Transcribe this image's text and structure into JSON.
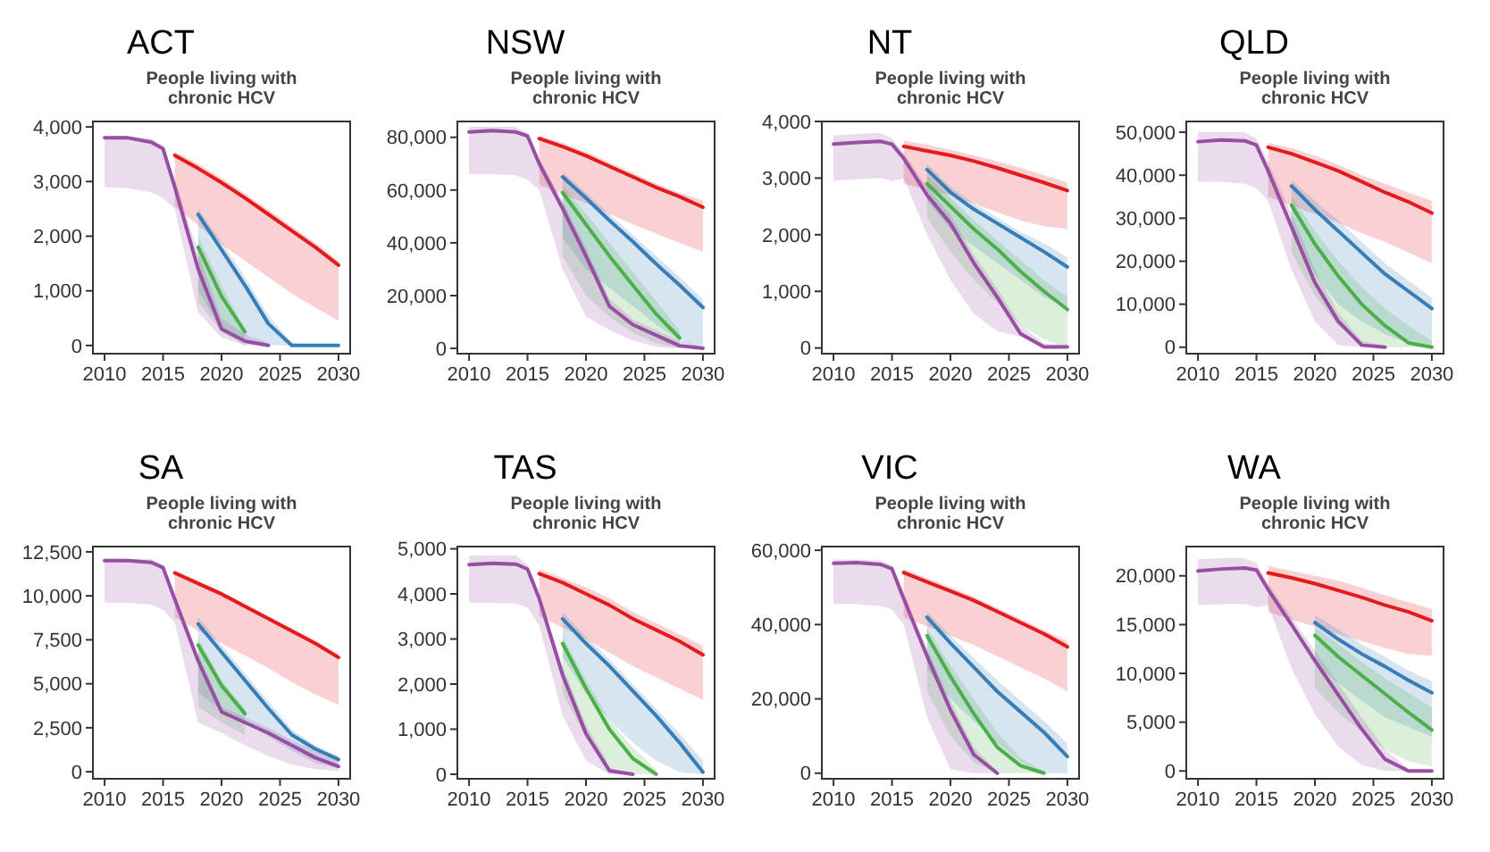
{
  "chart_data": [
    {
      "type": "line",
      "title": "ACT",
      "subtitle": "People living with chronic HCV",
      "x": [
        2010,
        2012,
        2014,
        2015,
        2016,
        2018,
        2020,
        2022,
        2024,
        2026,
        2028,
        2030
      ],
      "xlim": [
        2009,
        2031
      ],
      "xticks": [
        2010,
        2015,
        2020,
        2025,
        2030
      ],
      "ylim": [
        -150,
        4100
      ],
      "yticks": [
        {
          "value": 0,
          "label": "0"
        },
        {
          "value": 1000,
          "label": "1,000"
        },
        {
          "value": 2000,
          "label": "2,000"
        },
        {
          "value": 3000,
          "label": "3,000"
        },
        {
          "value": 4000,
          "label": "4,000"
        }
      ],
      "line_style": "solid",
      "series": [
        {
          "color": "#e41a1c",
          "values": [
            null,
            null,
            null,
            null,
            3480,
            3240,
            2980,
            2700,
            2400,
            2100,
            1800,
            1470
          ],
          "lower": [
            null,
            null,
            null,
            null,
            2550,
            2200,
            1850,
            1550,
            1250,
            950,
            700,
            450
          ],
          "upper": [
            null,
            null,
            null,
            null,
            3550,
            3320,
            3060,
            2780,
            2480,
            2180,
            1880,
            1550
          ]
        },
        {
          "color": "#377eb8",
          "values": [
            null,
            null,
            null,
            null,
            null,
            2400,
            1750,
            1100,
            400,
            0,
            0,
            0
          ],
          "lower": [
            null,
            null,
            null,
            null,
            null,
            1000,
            300,
            100,
            0,
            0,
            0,
            0
          ],
          "upper": [
            null,
            null,
            null,
            null,
            null,
            2500,
            1900,
            1250,
            550,
            50,
            0,
            0
          ]
        },
        {
          "color": "#4daf4a",
          "values": [
            null,
            null,
            null,
            null,
            null,
            1800,
            900,
            250,
            null,
            null,
            null,
            null
          ],
          "lower": [
            null,
            null,
            null,
            null,
            null,
            800,
            250,
            0,
            null,
            null,
            null,
            null
          ],
          "upper": [
            null,
            null,
            null,
            null,
            null,
            2000,
            1100,
            300,
            null,
            null,
            null,
            null
          ]
        },
        {
          "color": "#984ea3",
          "values": [
            3800,
            3800,
            3720,
            3600,
            2900,
            1400,
            300,
            80,
            0,
            null,
            null,
            null
          ],
          "lower": [
            2900,
            2880,
            2800,
            2700,
            2500,
            600,
            150,
            0,
            0,
            null,
            null,
            null
          ],
          "upper": [
            3830,
            3830,
            3780,
            3650,
            3050,
            1700,
            500,
            200,
            50,
            null,
            null,
            null
          ]
        }
      ]
    },
    {
      "type": "line",
      "title": "NSW",
      "subtitle": "People living with chronic HCV",
      "x": [
        2010,
        2012,
        2014,
        2015,
        2016,
        2018,
        2020,
        2022,
        2024,
        2026,
        2028,
        2030
      ],
      "xlim": [
        2009,
        2031
      ],
      "xticks": [
        2010,
        2015,
        2020,
        2025,
        2030
      ],
      "ylim": [
        -2000,
        86000
      ],
      "yticks": [
        {
          "value": 0,
          "label": "0"
        },
        {
          "value": 20000,
          "label": "20,000"
        },
        {
          "value": 40000,
          "label": "40,000"
        },
        {
          "value": 60000,
          "label": "60,000"
        },
        {
          "value": 80000,
          "label": "80,000"
        }
      ],
      "line_style": "solid",
      "series": [
        {
          "color": "#e41a1c",
          "values": [
            null,
            null,
            null,
            null,
            79500,
            76500,
            73000,
            69000,
            65000,
            61000,
            57500,
            53500
          ],
          "lower": [
            null,
            null,
            null,
            null,
            62000,
            58500,
            55000,
            51000,
            47000,
            43500,
            40000,
            36500
          ],
          "upper": [
            null,
            null,
            null,
            null,
            80500,
            78000,
            74500,
            70500,
            66500,
            62500,
            59000,
            56000
          ]
        },
        {
          "color": "#377eb8",
          "values": [
            null,
            null,
            null,
            null,
            null,
            65000,
            57000,
            48500,
            40500,
            32000,
            24000,
            15500
          ],
          "lower": [
            null,
            null,
            null,
            null,
            null,
            42000,
            30000,
            23000,
            16000,
            9000,
            3000,
            0
          ],
          "upper": [
            null,
            null,
            null,
            null,
            null,
            67000,
            59000,
            51000,
            43000,
            35000,
            27000,
            18500
          ]
        },
        {
          "color": "#4daf4a",
          "values": [
            null,
            null,
            null,
            null,
            null,
            59000,
            47000,
            35000,
            24000,
            13000,
            4000,
            null
          ],
          "lower": [
            null,
            null,
            null,
            null,
            null,
            35000,
            20000,
            12000,
            6000,
            2000,
            0,
            null
          ],
          "upper": [
            null,
            null,
            null,
            null,
            null,
            62000,
            51000,
            40000,
            29000,
            18000,
            7000,
            null
          ]
        },
        {
          "color": "#984ea3",
          "values": [
            82000,
            82500,
            82000,
            80500,
            70000,
            53000,
            35000,
            16000,
            9000,
            5000,
            1000,
            0
          ],
          "lower": [
            66000,
            66000,
            65500,
            64000,
            60000,
            30000,
            12000,
            7000,
            3000,
            500,
            0,
            0
          ],
          "upper": [
            84000,
            84000,
            84000,
            81500,
            72000,
            56000,
            38000,
            19000,
            11000,
            7000,
            3000,
            500
          ]
        }
      ]
    },
    {
      "type": "line",
      "title": "NT",
      "subtitle": "People living with chronic HCV",
      "x": [
        2010,
        2012,
        2014,
        2015,
        2016,
        2018,
        2020,
        2022,
        2024,
        2026,
        2028,
        2030
      ],
      "xlim": [
        2009,
        2031
      ],
      "xticks": [
        2010,
        2015,
        2020,
        2025,
        2030
      ],
      "ylim": [
        -100,
        4000
      ],
      "yticks": [
        {
          "value": 0,
          "label": "0"
        },
        {
          "value": 1000,
          "label": "1,000"
        },
        {
          "value": 2000,
          "label": "2,000"
        },
        {
          "value": 3000,
          "label": "3,000"
        },
        {
          "value": 4000,
          "label": "4,000"
        }
      ],
      "line_style": "solid",
      "series": [
        {
          "color": "#e41a1c",
          "values": [
            null,
            null,
            null,
            null,
            3560,
            3480,
            3400,
            3300,
            3180,
            3050,
            2920,
            2780
          ],
          "lower": [
            null,
            null,
            null,
            null,
            2900,
            2800,
            2700,
            2550,
            2400,
            2250,
            2150,
            2100
          ],
          "upper": [
            null,
            null,
            null,
            null,
            3660,
            3590,
            3500,
            3400,
            3300,
            3180,
            3050,
            2920
          ]
        },
        {
          "color": "#377eb8",
          "values": [
            null,
            null,
            null,
            null,
            null,
            3150,
            2750,
            2450,
            2200,
            1950,
            1700,
            1430
          ],
          "lower": [
            null,
            null,
            null,
            null,
            null,
            2600,
            2100,
            1800,
            1500,
            1200,
            900,
            700
          ],
          "upper": [
            null,
            null,
            null,
            null,
            null,
            3250,
            2850,
            2550,
            2300,
            2050,
            1850,
            1600
          ]
        },
        {
          "color": "#4daf4a",
          "values": [
            null,
            null,
            null,
            null,
            null,
            2900,
            2500,
            2100,
            1750,
            1350,
            1000,
            680
          ],
          "lower": [
            null,
            null,
            null,
            null,
            null,
            2300,
            1700,
            1200,
            800,
            400,
            150,
            0
          ],
          "upper": [
            null,
            null,
            null,
            null,
            null,
            3050,
            2650,
            2250,
            1900,
            1550,
            1200,
            900
          ]
        },
        {
          "color": "#984ea3",
          "values": [
            3600,
            3630,
            3650,
            3600,
            3350,
            2700,
            2200,
            1500,
            900,
            250,
            20,
            20
          ],
          "lower": [
            2950,
            2980,
            3000,
            2950,
            3000,
            2000,
            1200,
            600,
            300,
            200,
            0,
            0
          ],
          "upper": [
            3750,
            3780,
            3800,
            3700,
            3450,
            2850,
            2350,
            1650,
            1050,
            400,
            80,
            50
          ]
        }
      ]
    },
    {
      "type": "line",
      "title": "QLD",
      "subtitle": "People living with chronic HCV",
      "x": [
        2010,
        2012,
        2014,
        2015,
        2016,
        2018,
        2020,
        2022,
        2024,
        2026,
        2028,
        2030
      ],
      "xlim": [
        2009,
        2031
      ],
      "xticks": [
        2010,
        2015,
        2020,
        2025,
        2030
      ],
      "ylim": [
        -1500,
        52500
      ],
      "yticks": [
        {
          "value": 0,
          "label": "0"
        },
        {
          "value": 10000,
          "label": "10,000"
        },
        {
          "value": 20000,
          "label": "20,000"
        },
        {
          "value": 30000,
          "label": "30,000"
        },
        {
          "value": 40000,
          "label": "40,000"
        },
        {
          "value": 50000,
          "label": "50,000"
        }
      ],
      "line_style": "solid",
      "series": [
        {
          "color": "#e41a1c",
          "values": [
            null,
            null,
            null,
            null,
            46500,
            45000,
            43000,
            41000,
            38500,
            36000,
            33800,
            31200
          ],
          "lower": [
            null,
            null,
            null,
            null,
            35000,
            33000,
            31000,
            29000,
            26500,
            24500,
            22000,
            19500
          ],
          "upper": [
            null,
            null,
            null,
            null,
            47500,
            46300,
            44500,
            42500,
            40000,
            38000,
            36000,
            34000
          ]
        },
        {
          "color": "#377eb8",
          "values": [
            null,
            null,
            null,
            null,
            null,
            37500,
            32000,
            27000,
            22000,
            17000,
            13000,
            9000
          ],
          "lower": [
            null,
            null,
            null,
            null,
            null,
            27000,
            17000,
            10000,
            6000,
            3000,
            1000,
            0
          ],
          "upper": [
            null,
            null,
            null,
            null,
            null,
            39000,
            34000,
            29500,
            24500,
            19500,
            15500,
            11500
          ]
        },
        {
          "color": "#4daf4a",
          "values": [
            null,
            null,
            null,
            null,
            null,
            33000,
            24000,
            16500,
            10000,
            5000,
            1000,
            0
          ],
          "lower": [
            null,
            null,
            null,
            null,
            null,
            22000,
            12000,
            5000,
            1000,
            0,
            0,
            0
          ],
          "upper": [
            null,
            null,
            null,
            null,
            null,
            35000,
            27000,
            20000,
            14000,
            9000,
            5000,
            1500
          ]
        },
        {
          "color": "#984ea3",
          "values": [
            47800,
            48200,
            48000,
            47000,
            41000,
            28000,
            15000,
            6000,
            500,
            0,
            null,
            null
          ],
          "lower": [
            38500,
            38500,
            38000,
            37000,
            34000,
            18000,
            6000,
            500,
            0,
            0,
            null,
            null
          ],
          "upper": [
            50000,
            50000,
            50000,
            48500,
            43000,
            31000,
            18000,
            8000,
            1500,
            300,
            null,
            null
          ]
        }
      ]
    },
    {
      "type": "line",
      "title": "SA",
      "subtitle": "People living with chronic HCV",
      "x": [
        2010,
        2012,
        2014,
        2015,
        2016,
        2018,
        2020,
        2022,
        2024,
        2026,
        2028,
        2030
      ],
      "xlim": [
        2009,
        2031
      ],
      "xticks": [
        2010,
        2015,
        2020,
        2025,
        2030
      ],
      "ylim": [
        -400,
        12800
      ],
      "yticks": [
        {
          "value": 0,
          "label": "0"
        },
        {
          "value": 2500,
          "label": "2,500"
        },
        {
          "value": 5000,
          "label": "5,000"
        },
        {
          "value": 7500,
          "label": "7,500"
        },
        {
          "value": 10000,
          "label": "10,000"
        },
        {
          "value": 12500,
          "label": "12,500"
        }
      ],
      "line_style": "solid",
      "series": [
        {
          "color": "#e41a1c",
          "values": [
            null,
            null,
            null,
            null,
            11300,
            10700,
            10100,
            9400,
            8700,
            8000,
            7300,
            6500
          ],
          "lower": [
            null,
            null,
            null,
            null,
            8800,
            8000,
            7300,
            6600,
            5900,
            5100,
            4400,
            3800
          ],
          "upper": [
            null,
            null,
            null,
            null,
            11450,
            10850,
            10250,
            9550,
            8850,
            8150,
            7450,
            6700
          ]
        },
        {
          "color": "#377eb8",
          "values": [
            null,
            null,
            null,
            null,
            null,
            8400,
            6800,
            5200,
            3600,
            2100,
            1300,
            700
          ],
          "lower": [
            null,
            null,
            null,
            null,
            null,
            4500,
            3500,
            2800,
            2000,
            1200,
            500,
            200
          ],
          "upper": [
            null,
            null,
            null,
            null,
            null,
            8800,
            7200,
            5600,
            4000,
            2400,
            1500,
            900
          ]
        },
        {
          "color": "#4daf4a",
          "values": [
            null,
            null,
            null,
            null,
            null,
            7200,
            4900,
            3300,
            null,
            null,
            null,
            null
          ],
          "lower": [
            null,
            null,
            null,
            null,
            null,
            3700,
            2800,
            2100,
            null,
            null,
            null,
            null
          ],
          "upper": [
            null,
            null,
            null,
            null,
            null,
            7600,
            5200,
            3600,
            null,
            null,
            null,
            null
          ]
        },
        {
          "color": "#984ea3",
          "values": [
            12000,
            12000,
            11900,
            11600,
            9800,
            6300,
            3400,
            2800,
            2200,
            1500,
            800,
            300
          ],
          "lower": [
            9600,
            9600,
            9500,
            9200,
            8500,
            2800,
            2200,
            1500,
            900,
            400,
            150,
            50
          ],
          "upper": [
            12100,
            12100,
            12100,
            11750,
            10100,
            6700,
            3700,
            3100,
            2500,
            1800,
            1200,
            600
          ]
        }
      ]
    },
    {
      "type": "line",
      "title": "TAS",
      "subtitle": "People living with chronic HCV",
      "x": [
        2010,
        2012,
        2014,
        2015,
        2016,
        2018,
        2020,
        2022,
        2024,
        2026,
        2028,
        2030
      ],
      "xlim": [
        2009,
        2031
      ],
      "xticks": [
        2010,
        2015,
        2020,
        2025,
        2030
      ],
      "ylim": [
        -100,
        5050
      ],
      "yticks": [
        {
          "value": 0,
          "label": "0"
        },
        {
          "value": 1000,
          "label": "1,000"
        },
        {
          "value": 2000,
          "label": "2,000"
        },
        {
          "value": 3000,
          "label": "3,000"
        },
        {
          "value": 4000,
          "label": "4,000"
        },
        {
          "value": 5000,
          "label": "5,000"
        }
      ],
      "line_style": "solid",
      "series": [
        {
          "color": "#e41a1c",
          "values": [
            null,
            null,
            null,
            null,
            4450,
            4250,
            4000,
            3750,
            3450,
            3200,
            2950,
            2650
          ],
          "lower": [
            null,
            null,
            null,
            null,
            3500,
            3250,
            3000,
            2700,
            2400,
            2150,
            1900,
            1650
          ],
          "upper": [
            null,
            null,
            null,
            null,
            4550,
            4350,
            4150,
            3900,
            3600,
            3350,
            3100,
            2850
          ]
        },
        {
          "color": "#377eb8",
          "values": [
            null,
            null,
            null,
            null,
            null,
            3450,
            2900,
            2400,
            1850,
            1300,
            700,
            50
          ],
          "lower": [
            null,
            null,
            null,
            null,
            null,
            2600,
            1800,
            1200,
            700,
            300,
            50,
            0
          ],
          "upper": [
            null,
            null,
            null,
            null,
            null,
            3600,
            3050,
            2550,
            2000,
            1450,
            900,
            300
          ]
        },
        {
          "color": "#4daf4a",
          "values": [
            null,
            null,
            null,
            null,
            null,
            2900,
            1900,
            1000,
            350,
            0,
            null,
            null
          ],
          "lower": [
            null,
            null,
            null,
            null,
            null,
            1800,
            800,
            200,
            0,
            0,
            null,
            null
          ],
          "upper": [
            null,
            null,
            null,
            null,
            null,
            3050,
            2100,
            1200,
            600,
            100,
            null,
            null
          ]
        },
        {
          "color": "#984ea3",
          "values": [
            4650,
            4680,
            4660,
            4550,
            3900,
            2200,
            900,
            80,
            0,
            null,
            null,
            null
          ],
          "lower": [
            3800,
            3800,
            3780,
            3700,
            3300,
            1300,
            300,
            0,
            0,
            null,
            null,
            null
          ],
          "upper": [
            4850,
            4850,
            4850,
            4650,
            4000,
            2400,
            1100,
            200,
            0,
            null,
            null,
            null
          ]
        }
      ]
    },
    {
      "type": "line",
      "title": "VIC",
      "subtitle": "People living with chronic HCV",
      "x": [
        2010,
        2012,
        2014,
        2015,
        2016,
        2018,
        2020,
        2022,
        2024,
        2026,
        2028,
        2030
      ],
      "xlim": [
        2009,
        2031
      ],
      "xticks": [
        2010,
        2015,
        2020,
        2025,
        2030
      ],
      "ylim": [
        -1500,
        61000
      ],
      "yticks": [
        {
          "value": 0,
          "label": "0"
        },
        {
          "value": 20000,
          "label": "20,000"
        },
        {
          "value": 40000,
          "label": "40,000"
        },
        {
          "value": 60000,
          "label": "60,000"
        }
      ],
      "line_style": "solid",
      "series": [
        {
          "color": "#e41a1c",
          "values": [
            null,
            null,
            null,
            null,
            54000,
            51500,
            49000,
            46500,
            43500,
            40500,
            37500,
            34000
          ],
          "lower": [
            null,
            null,
            null,
            null,
            42000,
            39500,
            37000,
            34500,
            31500,
            28500,
            25500,
            22000
          ],
          "upper": [
            null,
            null,
            null,
            null,
            55000,
            52500,
            50000,
            47500,
            44500,
            41500,
            38500,
            35500
          ]
        },
        {
          "color": "#377eb8",
          "values": [
            null,
            null,
            null,
            null,
            null,
            42000,
            35000,
            28500,
            22000,
            16500,
            11000,
            4500
          ],
          "lower": [
            null,
            null,
            null,
            null,
            null,
            28000,
            20000,
            14000,
            8000,
            3000,
            0,
            0
          ],
          "upper": [
            null,
            null,
            null,
            null,
            null,
            43500,
            37000,
            31000,
            25000,
            19500,
            14000,
            8000
          ]
        },
        {
          "color": "#4daf4a",
          "values": [
            null,
            null,
            null,
            null,
            null,
            37000,
            26000,
            16000,
            7000,
            2000,
            0,
            null
          ],
          "lower": [
            null,
            null,
            null,
            null,
            null,
            22000,
            10000,
            3000,
            0,
            0,
            0,
            null
          ],
          "upper": [
            null,
            null,
            null,
            null,
            null,
            39000,
            29000,
            20000,
            11000,
            4000,
            500,
            null
          ]
        },
        {
          "color": "#984ea3",
          "values": [
            56500,
            56700,
            56200,
            55000,
            47000,
            31500,
            17000,
            5000,
            0,
            null,
            null,
            null
          ],
          "lower": [
            45500,
            45500,
            45000,
            44000,
            40000,
            15000,
            1000,
            0,
            0,
            null,
            null,
            null
          ],
          "upper": [
            57500,
            57500,
            57300,
            56000,
            48500,
            33500,
            19500,
            7000,
            500,
            null,
            null,
            null
          ]
        }
      ]
    },
    {
      "type": "line",
      "title": "WA",
      "subtitle": "People living with chronic HCV",
      "x": [
        2010,
        2012,
        2014,
        2015,
        2016,
        2018,
        2020,
        2022,
        2024,
        2026,
        2028,
        2030
      ],
      "xlim": [
        2009,
        2031
      ],
      "xticks": [
        2010,
        2015,
        2020,
        2025,
        2030
      ],
      "ylim": [
        -800,
        23000
      ],
      "yticks": [
        {
          "value": 0,
          "label": "0"
        },
        {
          "value": 5000,
          "label": "5,000"
        },
        {
          "value": 10000,
          "label": "10,000"
        },
        {
          "value": 15000,
          "label": "15,000"
        },
        {
          "value": 20000,
          "label": "20,000"
        }
      ],
      "line_style": "solid",
      "series": [
        {
          "color": "#e41a1c",
          "values": [
            null,
            null,
            null,
            null,
            20300,
            19800,
            19200,
            18500,
            17800,
            17000,
            16300,
            15400
          ],
          "lower": [
            null,
            null,
            null,
            null,
            16300,
            15500,
            14800,
            14000,
            13300,
            12600,
            12000,
            11800
          ],
          "upper": [
            null,
            null,
            null,
            null,
            21000,
            20500,
            20000,
            19500,
            18800,
            18000,
            17300,
            16600
          ]
        },
        {
          "color": "#377eb8",
          "values": [
            null,
            null,
            null,
            null,
            null,
            null,
            15200,
            13500,
            12000,
            10700,
            9300,
            8000
          ],
          "lower": [
            null,
            null,
            null,
            null,
            null,
            null,
            11000,
            9000,
            7200,
            5500,
            4500,
            3500
          ],
          "upper": [
            null,
            null,
            null,
            null,
            null,
            null,
            16000,
            14500,
            13000,
            11700,
            10300,
            9200
          ]
        },
        {
          "color": "#4daf4a",
          "values": [
            null,
            null,
            null,
            null,
            null,
            null,
            13900,
            11700,
            9800,
            7900,
            6000,
            4200
          ],
          "lower": [
            null,
            null,
            null,
            null,
            null,
            null,
            8500,
            6000,
            4000,
            2200,
            1000,
            500
          ],
          "upper": [
            null,
            null,
            null,
            null,
            null,
            null,
            14800,
            13000,
            11200,
            9500,
            8000,
            6500
          ]
        },
        {
          "color": "#984ea3",
          "values": [
            20500,
            20700,
            20800,
            20600,
            18600,
            15000,
            11300,
            7800,
            4300,
            1200,
            0,
            0
          ],
          "lower": [
            17000,
            17100,
            17100,
            16800,
            17000,
            10500,
            5800,
            2500,
            600,
            0,
            0,
            0
          ],
          "upper": [
            21700,
            21800,
            21800,
            21300,
            19200,
            15800,
            12300,
            9000,
            5500,
            2200,
            200,
            0
          ]
        }
      ]
    }
  ]
}
